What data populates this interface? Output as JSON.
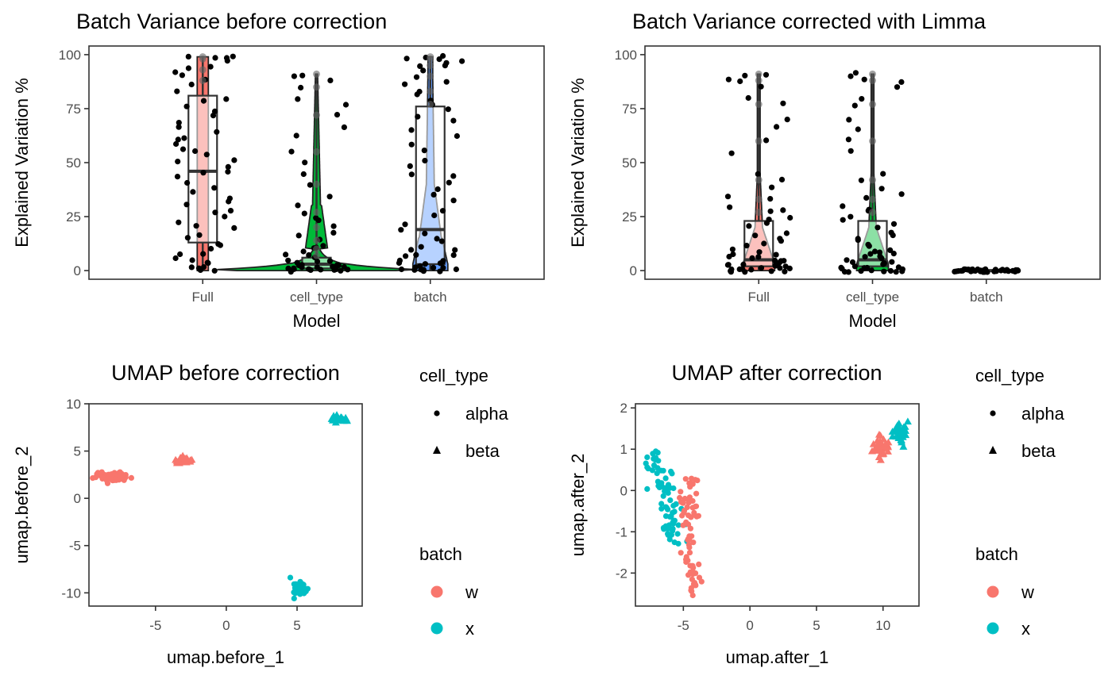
{
  "chart_data": [
    {
      "type": "violin",
      "title": "Batch Variance before correction",
      "xlabel": "Model",
      "ylabel": "Explained Variation %",
      "categories": [
        "Full",
        "cell_type",
        "batch"
      ],
      "ylim": [
        -4,
        104
      ],
      "yticks": [
        0,
        25,
        50,
        75,
        100
      ],
      "grid": false,
      "fill_colors": [
        "#F8766D",
        "#00BA38",
        "#619CFF"
      ],
      "box_stats": [
        {
          "category": "Full",
          "q1": 13,
          "median": 46,
          "q3": 81,
          "whisker_low": 0,
          "whisker_high": 99
        },
        {
          "category": "cell_type",
          "q1": 1,
          "median": 3,
          "q3": 6,
          "whisker_low": 0,
          "whisker_high": 91
        },
        {
          "category": "batch",
          "q1": 3,
          "median": 19,
          "q3": 76,
          "whisker_low": 0,
          "whisker_high": 99
        }
      ],
      "points": [
        {
          "category": "Full",
          "values": [
            99,
            99,
            98,
            98,
            97,
            95,
            93,
            92,
            91,
            88,
            86,
            83,
            80,
            78,
            76,
            74,
            72,
            69,
            66,
            64,
            62,
            60,
            58,
            56,
            55,
            53,
            51,
            50,
            48,
            46,
            45,
            43,
            41,
            39,
            37,
            34,
            32,
            30,
            28,
            27,
            25,
            23,
            21,
            19,
            17,
            15,
            13,
            12,
            10,
            8,
            7,
            6,
            5,
            4,
            3,
            2,
            1,
            1,
            0,
            0
          ]
        },
        {
          "category": "cell_type",
          "values": [
            91,
            90,
            88,
            85,
            80,
            77,
            72,
            66,
            62,
            55,
            50,
            45,
            40,
            34,
            30,
            27,
            25,
            23,
            20,
            18,
            16,
            14,
            12,
            11,
            10,
            9,
            8,
            7,
            6,
            5,
            5,
            4,
            4,
            3,
            3,
            3,
            2,
            2,
            2,
            1,
            1,
            1,
            1,
            1,
            0,
            0,
            0,
            0,
            0,
            0,
            0,
            0
          ]
        },
        {
          "category": "batch",
          "values": [
            99,
            99,
            98,
            98,
            97,
            96,
            95,
            94,
            92,
            90,
            88,
            86,
            83,
            81,
            79,
            77,
            75,
            72,
            69,
            65,
            62,
            58,
            55,
            51,
            48,
            45,
            44,
            41,
            38,
            35,
            32,
            28,
            25,
            22,
            19,
            17,
            15,
            13,
            11,
            10,
            9,
            8,
            7,
            6,
            5,
            5,
            4,
            4,
            3,
            3,
            2,
            2,
            2,
            1,
            1,
            1,
            1,
            0,
            0,
            0,
            0,
            0
          ]
        }
      ]
    },
    {
      "type": "violin",
      "title": "Batch Variance corrected with Limma",
      "xlabel": "Model",
      "ylabel": "Explained Variation %",
      "categories": [
        "Full",
        "cell_type",
        "batch"
      ],
      "ylim": [
        -4,
        104
      ],
      "yticks": [
        0,
        25,
        50,
        75,
        100
      ],
      "grid": false,
      "fill_colors": [
        "#F8766D",
        "#00BA38",
        "#619CFF"
      ],
      "box_stats": [
        {
          "category": "Full",
          "q1": 2,
          "median": 5,
          "q3": 23,
          "whisker_low": 0,
          "whisker_high": 91
        },
        {
          "category": "cell_type",
          "q1": 2,
          "median": 5,
          "q3": 23,
          "whisker_low": 0,
          "whisker_high": 91
        },
        {
          "category": "batch",
          "q1": 0,
          "median": 0,
          "q3": 0,
          "whisker_low": 0,
          "whisker_high": 0
        }
      ],
      "points": [
        {
          "category": "Full",
          "values": [
            91,
            90,
            89,
            88,
            85,
            80,
            77,
            70,
            66,
            60,
            55,
            45,
            42,
            38,
            35,
            33,
            30,
            28,
            27,
            25,
            23,
            22,
            20,
            18,
            16,
            15,
            14,
            12,
            11,
            10,
            9,
            8,
            8,
            7,
            6,
            6,
            5,
            5,
            4,
            4,
            3,
            3,
            3,
            2,
            2,
            2,
            1,
            1,
            1,
            1,
            0,
            0,
            0,
            0,
            0,
            0,
            0,
            0
          ]
        },
        {
          "category": "cell_type",
          "values": [
            91,
            90,
            89,
            88,
            85,
            80,
            77,
            70,
            66,
            60,
            55,
            45,
            42,
            38,
            35,
            33,
            30,
            28,
            27,
            25,
            23,
            22,
            20,
            18,
            16,
            15,
            14,
            12,
            11,
            10,
            9,
            8,
            8,
            7,
            6,
            6,
            5,
            5,
            4,
            4,
            3,
            3,
            3,
            2,
            2,
            2,
            1,
            1,
            1,
            1,
            0,
            0,
            0,
            0,
            0,
            0,
            0,
            0
          ]
        },
        {
          "category": "batch",
          "values": [
            0,
            0,
            0,
            0,
            0,
            0,
            0,
            0,
            0,
            0,
            0,
            0,
            0,
            0,
            0,
            0,
            0,
            0,
            0,
            0,
            0,
            0,
            0,
            0,
            0,
            0,
            0,
            0,
            0,
            0,
            0,
            0,
            0,
            0,
            0,
            0,
            0,
            0,
            0,
            0
          ]
        }
      ]
    },
    {
      "type": "scatter",
      "title": "UMAP before correction",
      "xlabel": "umap.before_1",
      "ylabel": "umap.before_2",
      "xlim": [
        -9.7,
        9.6
      ],
      "ylim": [
        -11.4,
        10.0
      ],
      "xticks": [
        -5,
        0,
        5
      ],
      "yticks": [
        -10,
        -5,
        0,
        5,
        10
      ],
      "grid": false,
      "legend_placement": "right",
      "legends": [
        {
          "title": "cell_type",
          "entries": [
            {
              "label": "alpha",
              "shape": "circle"
            },
            {
              "label": "beta",
              "shape": "triangle"
            }
          ]
        },
        {
          "title": "batch",
          "entries": [
            {
              "label": "w",
              "color": "#F8766D"
            },
            {
              "label": "x",
              "color": "#00BFC4"
            }
          ]
        }
      ],
      "clusters": [
        {
          "batch": "w",
          "cell_type": "alpha",
          "center": [
            -8.0,
            2.3
          ],
          "spread": [
            1.1,
            0.5
          ],
          "count": 70
        },
        {
          "batch": "w",
          "cell_type": "beta",
          "center": [
            -3.0,
            4.0
          ],
          "spread": [
            0.6,
            0.3
          ],
          "count": 35
        },
        {
          "batch": "x",
          "cell_type": "alpha",
          "center": [
            5.2,
            -9.6
          ],
          "spread": [
            0.5,
            0.8
          ],
          "count": 70
        },
        {
          "batch": "x",
          "cell_type": "beta",
          "center": [
            7.9,
            8.4
          ],
          "spread": [
            0.6,
            0.3
          ],
          "count": 35
        }
      ]
    },
    {
      "type": "scatter",
      "title": "UMAP after correction",
      "xlabel": "umap.after_1",
      "ylabel": "umap.after_2",
      "xlim": [
        -8.6,
        12.7
      ],
      "ylim": [
        -2.8,
        2.1
      ],
      "xticks": [
        -5,
        0,
        5,
        10
      ],
      "yticks": [
        -2,
        -1,
        0,
        1,
        2
      ],
      "grid": false,
      "legend_placement": "right",
      "legends": [
        {
          "title": "cell_type",
          "entries": [
            {
              "label": "alpha",
              "shape": "circle"
            },
            {
              "label": "beta",
              "shape": "triangle"
            }
          ]
        },
        {
          "title": "batch",
          "entries": [
            {
              "label": "w",
              "color": "#F8766D"
            },
            {
              "label": "x",
              "color": "#00BFC4"
            }
          ]
        }
      ],
      "clusters": [
        {
          "batch": "x",
          "cell_type": "alpha",
          "path": [
            [
              -7.5,
              0.95
            ],
            [
              -6.6,
              0.2
            ],
            [
              -6.0,
              -0.5
            ],
            [
              -5.5,
              -1.3
            ]
          ],
          "jitter": [
            0.45,
            0.12
          ],
          "count": 70
        },
        {
          "batch": "w",
          "cell_type": "alpha",
          "path": [
            [
              -4.5,
              0.3
            ],
            [
              -4.6,
              -0.5
            ],
            [
              -4.5,
              -1.4
            ],
            [
              -4.1,
              -2.6
            ]
          ],
          "jitter": [
            0.35,
            0.1
          ],
          "count": 70
        },
        {
          "batch": "w",
          "cell_type": "beta",
          "center": [
            9.9,
            1.05
          ],
          "spread": [
            0.55,
            0.28
          ],
          "count": 35
        },
        {
          "batch": "x",
          "cell_type": "beta",
          "center": [
            11.4,
            1.35
          ],
          "spread": [
            0.45,
            0.25
          ],
          "count": 35
        }
      ]
    }
  ]
}
